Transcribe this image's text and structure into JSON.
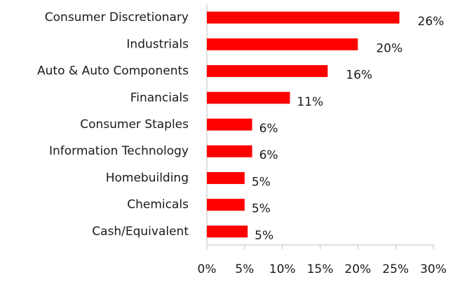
{
  "chart_data": {
    "type": "bar",
    "orientation": "horizontal",
    "categories": [
      "Consumer Discretionary",
      "Industrials",
      "Auto & Auto Components",
      "Financials",
      "Consumer Staples",
      "Information Technology",
      "Homebuilding",
      "Chemicals",
      "Cash/Equivalent"
    ],
    "values": [
      25.5,
      20,
      16,
      11,
      6,
      6,
      5,
      5,
      5.4
    ],
    "value_labels": [
      "26%",
      "20%",
      "16%",
      "11%",
      "6%",
      "6%",
      "5%",
      "5%",
      "5%"
    ],
    "color": "#ff0000",
    "xlim": [
      0,
      30
    ],
    "xticks": [
      {
        "value": 0,
        "label": "0%"
      },
      {
        "value": 5,
        "label": "5%"
      },
      {
        "value": 10,
        "label": "10%"
      },
      {
        "value": 15,
        "label": "15%"
      },
      {
        "value": 20,
        "label": "20%"
      },
      {
        "value": 25,
        "label": "25%"
      },
      {
        "value": 30,
        "label": "30%"
      }
    ]
  }
}
